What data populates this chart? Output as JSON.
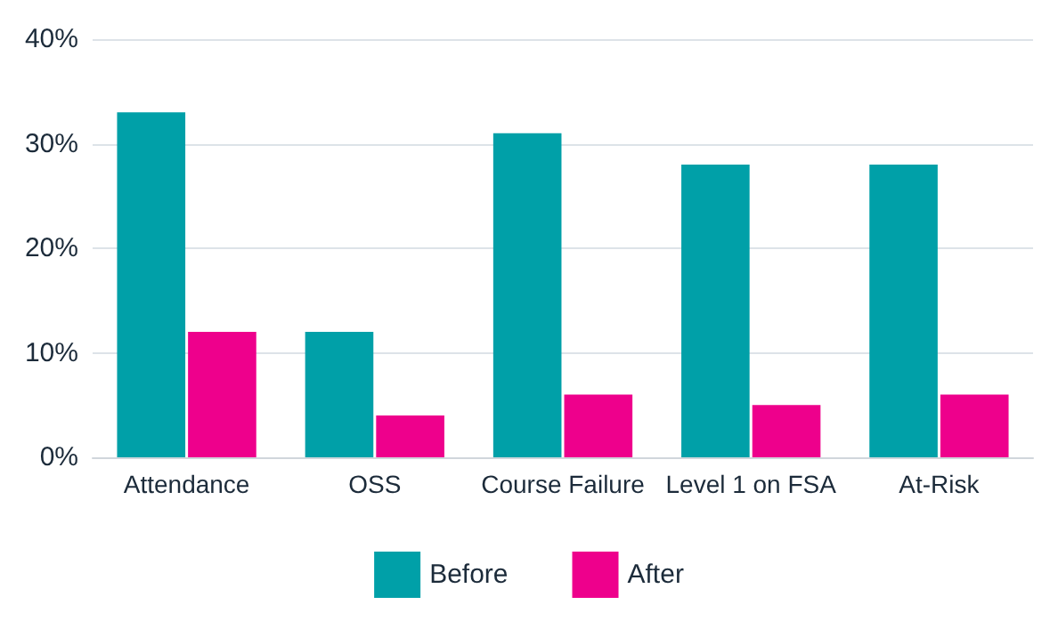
{
  "chart_data": {
    "type": "bar",
    "categories": [
      "Attendance",
      "OSS",
      "Course Failure",
      "Level 1 on FSA",
      "At-Risk"
    ],
    "series": [
      {
        "name": "Before",
        "color": "#00a0a8",
        "values": [
          33,
          12,
          31,
          28,
          28
        ]
      },
      {
        "name": "After",
        "color": "#ee008c",
        "values": [
          12,
          4,
          6,
          5,
          6
        ]
      }
    ],
    "ylim": [
      0,
      40
    ],
    "yticks": [
      {
        "value": 0,
        "label": "0%"
      },
      {
        "value": 10,
        "label": "10%"
      },
      {
        "value": 20,
        "label": "20%"
      },
      {
        "value": 30,
        "label": "30%"
      },
      {
        "value": 40,
        "label": "40%"
      }
    ],
    "grid": "y",
    "legend": "bottom"
  }
}
